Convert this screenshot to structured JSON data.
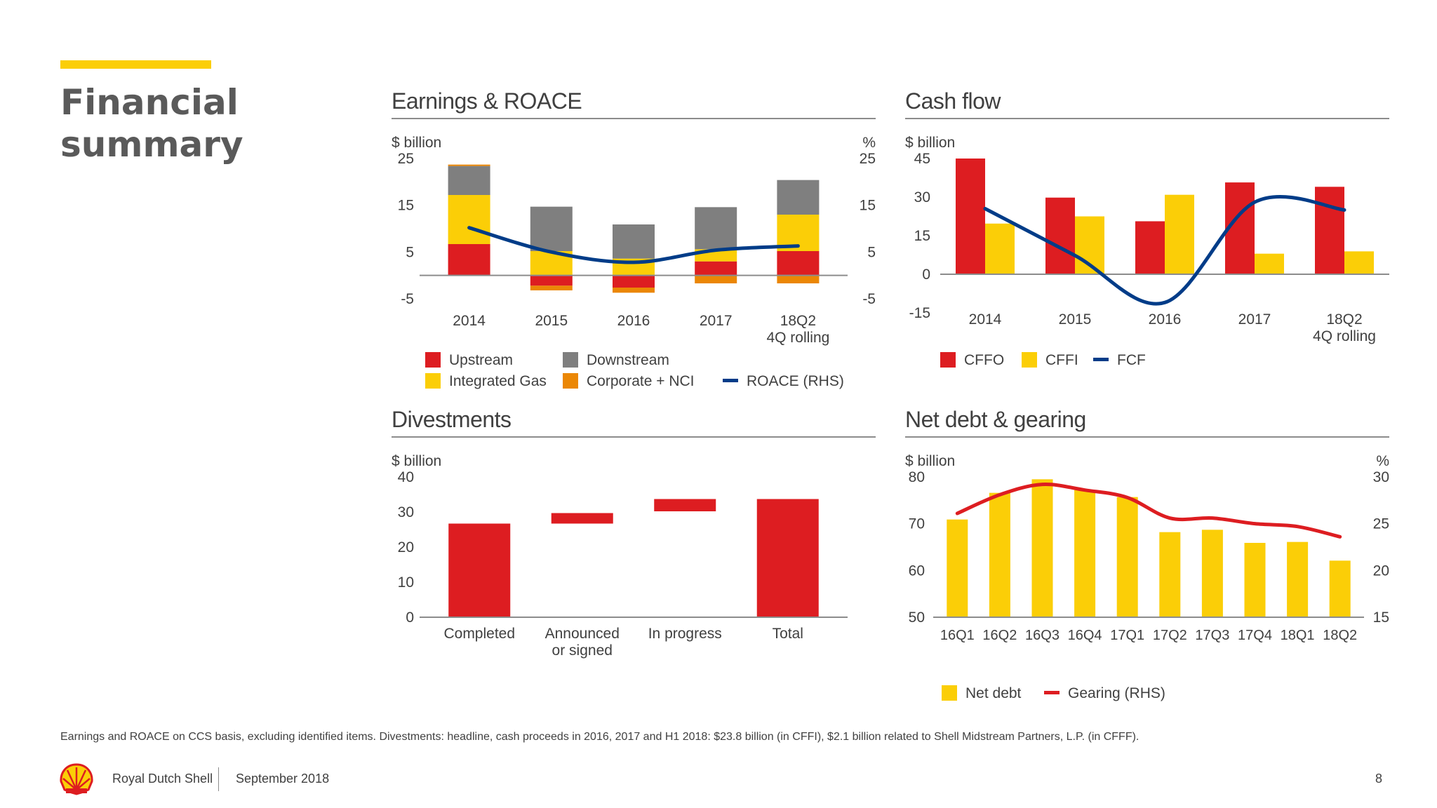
{
  "colors": {
    "shell_red": "#DD1D21",
    "shell_yellow": "#FBCE07",
    "grey": "#7F7F7F",
    "orange": "#EB8705",
    "navy": "#003C88",
    "text": "#404040",
    "axis": "#8C8C8C"
  },
  "page": {
    "title_line1": "Financial",
    "title_line2": "summary"
  },
  "footnote": "Earnings and ROACE on CCS basis, excluding identified items. Divestments: headline, cash proceeds in 2016, 2017 and H1 2018: $23.8 billion (in CFFI), $2.1 billion related to Shell Midstream Partners, L.P. (in CFFF).",
  "footer": {
    "company": "Royal Dutch Shell",
    "date": "September 2018",
    "page_number": "8",
    "logo_icon": "shell-pecten-icon"
  },
  "chart_data": [
    {
      "id": "earnings",
      "type": "bar",
      "stacked": true,
      "title": "Earnings & ROACE",
      "y_unit_left": "$ billion",
      "y_unit_right": "%",
      "ylim": [
        -5,
        25
      ],
      "yticks": [
        "25",
        "15",
        "5",
        "-5"
      ],
      "yticks_right": [
        "25",
        "15",
        "5",
        "-5"
      ],
      "categories": [
        "2014",
        "2015",
        "2016",
        "2017",
        "18Q2\n4Q rolling"
      ],
      "series": [
        {
          "name": "Upstream",
          "color": "#DD1D21",
          "values": [
            6.7,
            -2.2,
            -2.6,
            3.0,
            5.2
          ]
        },
        {
          "name": "Integrated Gas",
          "color": "#FBCE07",
          "values": [
            10.5,
            5.2,
            3.6,
            2.6,
            7.8
          ]
        },
        {
          "name": "Downstream",
          "color": "#7F7F7F",
          "values": [
            6.2,
            9.5,
            7.3,
            9.0,
            7.4
          ]
        },
        {
          "name": "Corporate + NCI",
          "color": "#EB8705",
          "values": [
            0.3,
            -1.0,
            -1.1,
            -1.7,
            -1.7
          ]
        }
      ],
      "line": {
        "name": "ROACE (RHS)",
        "color": "#003C88",
        "values": [
          10.2,
          5.0,
          2.8,
          5.4,
          6.3
        ]
      },
      "legend": [
        "Upstream",
        "Downstream",
        "Integrated Gas",
        "Corporate + NCI",
        "ROACE (RHS)"
      ],
      "legend_placement": "bottom"
    },
    {
      "id": "cashflow",
      "type": "bar",
      "title": "Cash flow",
      "y_unit_left": "$ billion",
      "ylim": [
        -15,
        45
      ],
      "yticks": [
        "45",
        "30",
        "15",
        "0",
        "-15"
      ],
      "categories": [
        "2014",
        "2015",
        "2016",
        "2017",
        "18Q2\n4Q rolling"
      ],
      "series": [
        {
          "name": "CFFO",
          "color": "#DD1D21",
          "values": [
            45,
            29.8,
            20.6,
            35.7,
            34
          ]
        },
        {
          "name": "CFFI",
          "color": "#FBCE07",
          "values": [
            19.7,
            22.5,
            30.9,
            8,
            8.9
          ]
        }
      ],
      "line": {
        "name": "FCF",
        "color": "#003C88",
        "values": [
          25.5,
          7.3,
          -11.0,
          28.0,
          25.0
        ]
      },
      "legend_placement": "bottom"
    },
    {
      "id": "divestments",
      "type": "bar",
      "subtype": "waterfall",
      "title": "Divestments",
      "y_unit_left": "$ billion",
      "ylim": [
        0,
        40
      ],
      "yticks": [
        "40",
        "30",
        "20",
        "10",
        "0"
      ],
      "categories": [
        "Completed",
        "Announced\nor signed",
        "In progress",
        "Total"
      ],
      "bars": [
        {
          "base": 0,
          "top": 26.7,
          "color": "#DD1D21"
        },
        {
          "base": 26.7,
          "top": 29.7,
          "color": "#DD1D21"
        },
        {
          "base": 30.2,
          "top": 33.7,
          "color": "#DD1D21"
        },
        {
          "base": 0,
          "top": 33.7,
          "color": "#DD1D21"
        }
      ]
    },
    {
      "id": "netdebt",
      "type": "bar",
      "title": "Net debt & gearing",
      "y_unit_left": "$ billion",
      "y_unit_right": "%",
      "ylim": [
        50,
        80
      ],
      "ylim_right": [
        15,
        30
      ],
      "yticks": [
        "80",
        "70",
        "60",
        "50"
      ],
      "yticks_right": [
        "30",
        "25",
        "20",
        "15"
      ],
      "categories": [
        "16Q1",
        "16Q2",
        "16Q3",
        "16Q4",
        "17Q1",
        "17Q2",
        "17Q3",
        "17Q4",
        "18Q1",
        "18Q2"
      ],
      "series": [
        {
          "name": "Net debt",
          "color": "#FBCE07",
          "values": [
            70.9,
            76.6,
            79.5,
            77.2,
            75.7,
            68.2,
            68.7,
            65.9,
            66.1,
            62.1
          ]
        }
      ],
      "line": {
        "name": "Gearing (RHS)",
        "color": "#DD1D21",
        "values": [
          26.1,
          28.1,
          29.2,
          28.6,
          27.8,
          25.6,
          25.6,
          25.0,
          24.7,
          23.6
        ]
      },
      "legend_placement": "bottom"
    }
  ]
}
